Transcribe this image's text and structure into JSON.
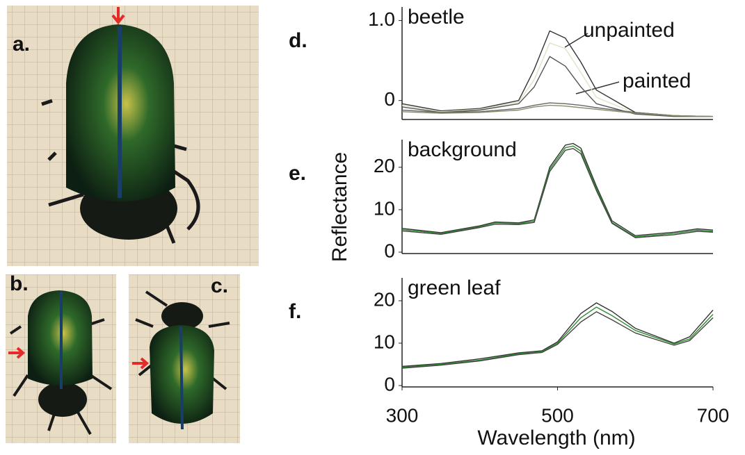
{
  "photos": [
    {
      "label": "a."
    },
    {
      "label": "b."
    },
    {
      "label": "c."
    }
  ],
  "chart_data": [
    {
      "type": "line",
      "panel_label": "d.",
      "title": "beetle",
      "annotations": [
        "unpainted",
        "painted"
      ],
      "x": [
        300,
        350,
        400,
        450,
        470,
        490,
        510,
        530,
        550,
        600,
        650,
        700
      ],
      "xlim": [
        300,
        700
      ],
      "ylim": [
        -0.22,
        1.17
      ],
      "yticks": [
        0,
        {
          "value": 1,
          "label": "1.0"
        }
      ],
      "series": [
        {
          "color": "#333333",
          "values": [
            -0.04,
            -0.13,
            -0.1,
            0,
            0.39,
            0.87,
            0.78,
            0.48,
            0.13,
            -0.15,
            -0.19,
            -0.2
          ]
        },
        {
          "color": "#dfe3c6",
          "values": [
            -0.06,
            -0.14,
            -0.11,
            -0.02,
            0.26,
            0.72,
            0.65,
            0.35,
            0.04,
            -0.16,
            -0.19,
            -0.2
          ]
        },
        {
          "color": "#555555",
          "values": [
            -0.08,
            -0.15,
            -0.12,
            -0.04,
            0.17,
            0.55,
            0.43,
            0.17,
            -0.04,
            -0.17,
            -0.2,
            -0.2
          ]
        },
        {
          "color": "#666666",
          "values": [
            -0.12,
            -0.15,
            -0.14,
            -0.1,
            -0.06,
            -0.03,
            -0.04,
            -0.06,
            -0.09,
            -0.15,
            -0.19,
            -0.2
          ]
        },
        {
          "color": "#8a8a6a",
          "values": [
            -0.14,
            -0.16,
            -0.15,
            -0.12,
            -0.08,
            -0.06,
            -0.07,
            -0.09,
            -0.11,
            -0.16,
            -0.19,
            -0.2
          ]
        }
      ]
    },
    {
      "type": "line",
      "panel_label": "e.",
      "title": "background",
      "ylabel": "Reflectance",
      "x": [
        300,
        350,
        400,
        420,
        450,
        470,
        490,
        510,
        520,
        530,
        550,
        570,
        600,
        650,
        680,
        700
      ],
      "xlim": [
        300,
        700
      ],
      "ylim": [
        0,
        26.5
      ],
      "yticks": [
        0,
        10,
        20
      ],
      "series": [
        {
          "color": "#333333",
          "values": [
            5.6,
            4.6,
            6.2,
            7.1,
            6.9,
            7.6,
            20,
            25.2,
            25.6,
            24.5,
            15.5,
            7.4,
            3.9,
            4.7,
            5.5,
            5.2
          ]
        },
        {
          "color": "#2e8b2e",
          "values": [
            5.3,
            4.4,
            6,
            6.9,
            6.7,
            7.3,
            19.5,
            24.6,
            25,
            23.8,
            15,
            7,
            3.6,
            4.4,
            5.2,
            4.9
          ]
        },
        {
          "color": "#444444",
          "values": [
            5,
            4.2,
            5.8,
            6.6,
            6.5,
            7,
            19,
            24,
            24.4,
            23.2,
            14.5,
            6.8,
            3.4,
            4.1,
            4.9,
            4.7
          ]
        }
      ]
    },
    {
      "type": "line",
      "panel_label": "f.",
      "title": "green leaf",
      "xlabel": "Wavelength (nm)",
      "x": [
        300,
        350,
        400,
        450,
        480,
        500,
        530,
        550,
        570,
        600,
        650,
        670,
        700
      ],
      "xlim": [
        300,
        700
      ],
      "xticks": [
        300,
        500,
        700
      ],
      "ylim": [
        0,
        25.4
      ],
      "yticks": [
        0,
        10,
        20
      ],
      "series": [
        {
          "color": "#333333",
          "values": [
            4.5,
            5.2,
            6.3,
            7.7,
            8.2,
            10.3,
            17,
            19.5,
            17.5,
            13.5,
            10,
            11.5,
            17.8
          ]
        },
        {
          "color": "#2e8b2e",
          "values": [
            4.3,
            5,
            6,
            7.5,
            8,
            10,
            16,
            18.5,
            16.5,
            13,
            9.8,
            11,
            16.8
          ]
        },
        {
          "color": "#444444",
          "values": [
            4.1,
            4.8,
            5.8,
            7.3,
            7.8,
            9.7,
            15,
            17.4,
            15.5,
            12.4,
            9.5,
            10.6,
            16
          ]
        }
      ]
    }
  ]
}
